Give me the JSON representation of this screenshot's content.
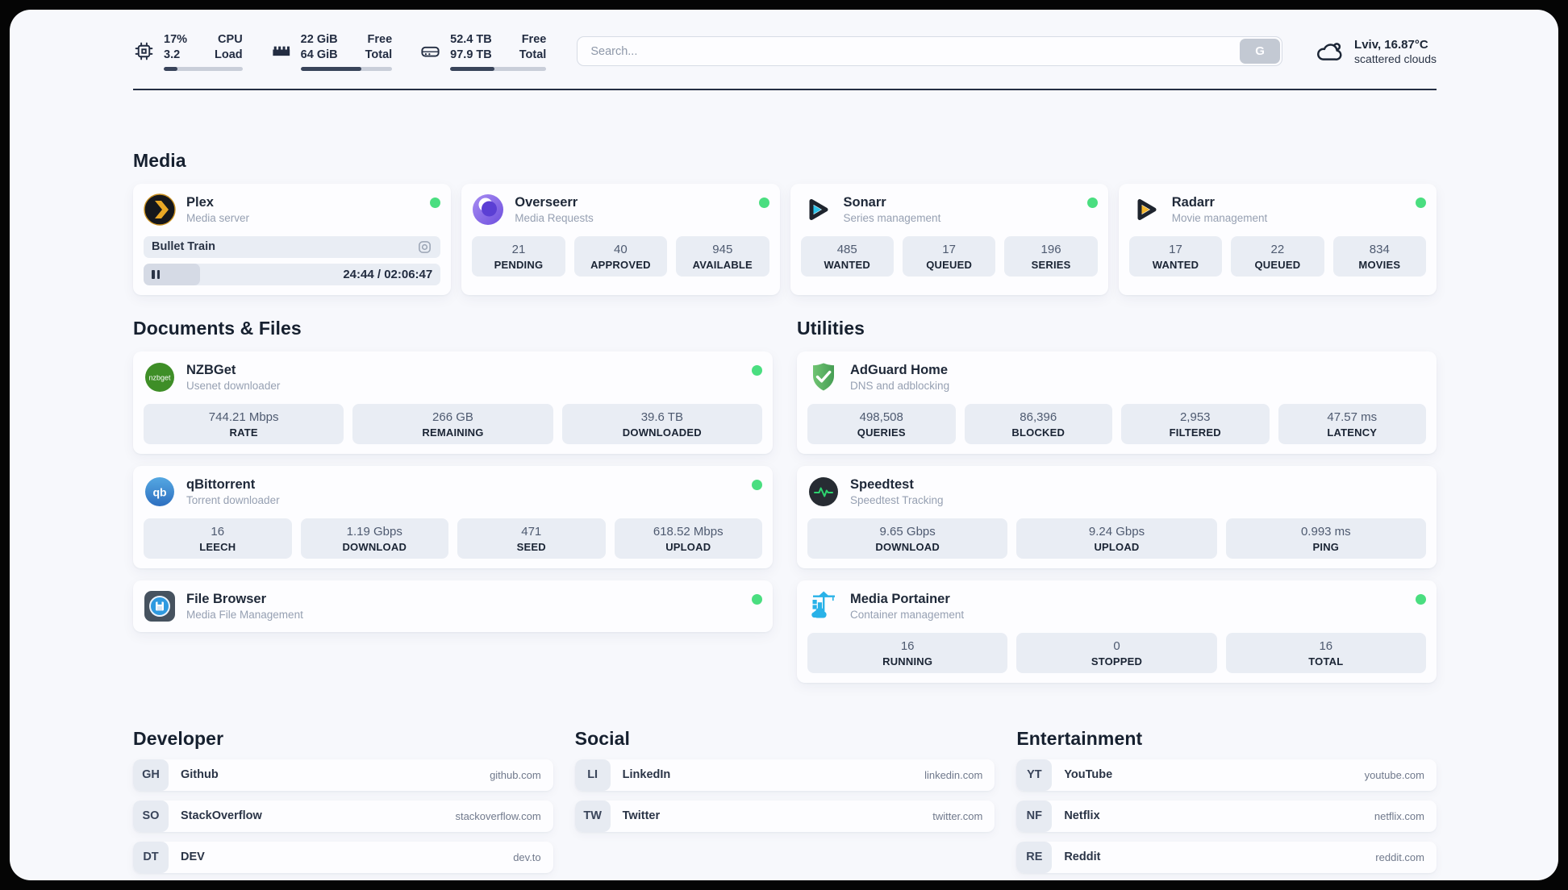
{
  "header": {
    "cpu": {
      "value_top": "17%",
      "value_bottom": "3.2",
      "label_top": "CPU",
      "label_bottom": "Load",
      "progress_pct": 17
    },
    "ram": {
      "value_top": "22 GiB",
      "value_bottom": "64 GiB",
      "label_top": "Free",
      "label_bottom": "Total",
      "progress_pct": 66
    },
    "disk": {
      "value_top": "52.4 TB",
      "value_bottom": "97.9 TB",
      "label_top": "Free",
      "label_bottom": "Total",
      "progress_pct": 46
    },
    "search": {
      "placeholder": "Search...",
      "button_label": "G"
    },
    "weather": {
      "line1": "Lviv, 16.87°C",
      "line2": "scattered clouds"
    }
  },
  "media": {
    "title": "Media",
    "plex": {
      "name": "Plex",
      "description": "Media server",
      "player": {
        "title": "Bullet Train",
        "time": "24:44 / 02:06:47",
        "progress_pct": 19
      }
    },
    "overseerr": {
      "name": "Overseerr",
      "description": "Media Requests",
      "stats": [
        {
          "value": "21",
          "label": "PENDING"
        },
        {
          "value": "40",
          "label": "APPROVED"
        },
        {
          "value": "945",
          "label": "AVAILABLE"
        }
      ]
    },
    "sonarr": {
      "name": "Sonarr",
      "description": "Series management",
      "stats": [
        {
          "value": "485",
          "label": "WANTED"
        },
        {
          "value": "17",
          "label": "QUEUED"
        },
        {
          "value": "196",
          "label": "SERIES"
        }
      ]
    },
    "radarr": {
      "name": "Radarr",
      "description": "Movie management",
      "stats": [
        {
          "value": "17",
          "label": "WANTED"
        },
        {
          "value": "22",
          "label": "QUEUED"
        },
        {
          "value": "834",
          "label": "MOVIES"
        }
      ]
    }
  },
  "documents": {
    "title": "Documents & Files",
    "nzbget": {
      "name": "NZBGet",
      "description": "Usenet downloader",
      "stats": [
        {
          "value": "744.21 Mbps",
          "label": "RATE"
        },
        {
          "value": "266 GB",
          "label": "REMAINING"
        },
        {
          "value": "39.6 TB",
          "label": "DOWNLOADED"
        }
      ]
    },
    "qbittorrent": {
      "name": "qBittorrent",
      "description": "Torrent downloader",
      "stats": [
        {
          "value": "16",
          "label": "LEECH"
        },
        {
          "value": "1.19 Gbps",
          "label": "DOWNLOAD"
        },
        {
          "value": "471",
          "label": "SEED"
        },
        {
          "value": "618.52 Mbps",
          "label": "UPLOAD"
        }
      ]
    },
    "filebrowser": {
      "name": "File Browser",
      "description": "Media File Management"
    }
  },
  "utilities": {
    "title": "Utilities",
    "adguard": {
      "name": "AdGuard Home",
      "description": "DNS and adblocking",
      "stats": [
        {
          "value": "498,508",
          "label": "QUERIES"
        },
        {
          "value": "86,396",
          "label": "BLOCKED"
        },
        {
          "value": "2,953",
          "label": "FILTERED"
        },
        {
          "value": "47.57 ms",
          "label": "LATENCY"
        }
      ]
    },
    "speedtest": {
      "name": "Speedtest",
      "description": "Speedtest Tracking",
      "stats": [
        {
          "value": "9.65 Gbps",
          "label": "DOWNLOAD"
        },
        {
          "value": "9.24 Gbps",
          "label": "UPLOAD"
        },
        {
          "value": "0.993 ms",
          "label": "PING"
        }
      ]
    },
    "portainer": {
      "name": "Media Portainer",
      "description": "Container management",
      "stats": [
        {
          "value": "16",
          "label": "RUNNING"
        },
        {
          "value": "0",
          "label": "STOPPED"
        },
        {
          "value": "16",
          "label": "TOTAL"
        }
      ]
    }
  },
  "links": {
    "developer": {
      "title": "Developer",
      "items": [
        {
          "abbr": "GH",
          "name": "Github",
          "url": "github.com"
        },
        {
          "abbr": "SO",
          "name": "StackOverflow",
          "url": "stackoverflow.com"
        },
        {
          "abbr": "DT",
          "name": "DEV",
          "url": "dev.to"
        }
      ]
    },
    "social": {
      "title": "Social",
      "items": [
        {
          "abbr": "LI",
          "name": "LinkedIn",
          "url": "linkedin.com"
        },
        {
          "abbr": "TW",
          "name": "Twitter",
          "url": "twitter.com"
        }
      ]
    },
    "entertainment": {
      "title": "Entertainment",
      "items": [
        {
          "abbr": "YT",
          "name": "YouTube",
          "url": "youtube.com"
        },
        {
          "abbr": "NF",
          "name": "Netflix",
          "url": "netflix.com"
        },
        {
          "abbr": "RE",
          "name": "Reddit",
          "url": "reddit.com"
        }
      ]
    }
  },
  "colors": {
    "status_online": "#4ade80",
    "progress_fill": "#39445a",
    "accent_card": "#e9edf4"
  }
}
